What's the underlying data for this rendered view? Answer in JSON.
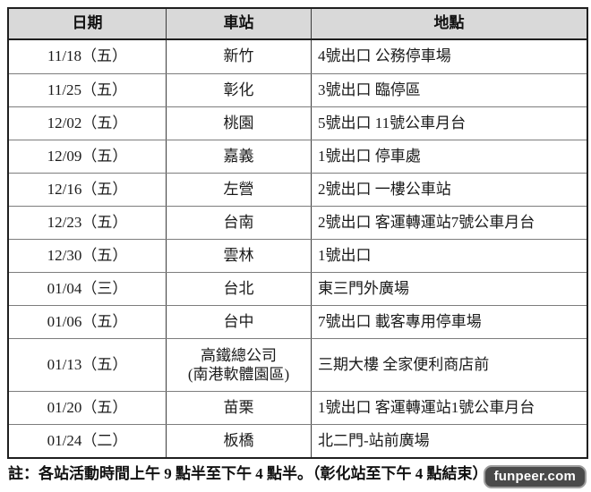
{
  "table": {
    "headers": [
      "日期",
      "車站",
      "地點"
    ],
    "rows": [
      {
        "date": "11/18（五）",
        "station": "新竹",
        "location": "4號出口 公務停車場"
      },
      {
        "date": "11/25（五）",
        "station": "彰化",
        "location": "3號出口 臨停區"
      },
      {
        "date": "12/02（五）",
        "station": "桃園",
        "location": "5號出口 11號公車月台"
      },
      {
        "date": "12/09（五）",
        "station": "嘉義",
        "location": "1號出口 停車處"
      },
      {
        "date": "12/16（五）",
        "station": "左營",
        "location": "2號出口 一樓公車站"
      },
      {
        "date": "12/23（五）",
        "station": "台南",
        "location": "2號出口 客運轉運站7號公車月台"
      },
      {
        "date": "12/30（五）",
        "station": "雲林",
        "location": "1號出口"
      },
      {
        "date": "01/04（三）",
        "station": "台北",
        "location": "東三門外廣場"
      },
      {
        "date": "01/06（五）",
        "station": "台中",
        "location": "7號出口 載客專用停車場"
      },
      {
        "date": "01/13（五）",
        "station": "高鐵總公司",
        "station_line2": "(南港軟體園區)",
        "location": "三期大樓 全家便利商店前"
      },
      {
        "date": "01/20（五）",
        "station": "苗栗",
        "location": "1號出口 客運轉運站1號公車月台"
      },
      {
        "date": "01/24（二）",
        "station": "板橋",
        "location": "北二門-站前廣場"
      }
    ]
  },
  "note": "註：各站活動時間上午 9 點半至下午 4 點半。（彰化站至下午 4 點結束）",
  "watermark": "funpeer.com",
  "colors": {
    "header_bg": "#d9d9d9",
    "outer_border": "#1f1f1f",
    "row_line": "#7d7d7d",
    "column_line": "#3c3c3c",
    "watermark_bg": "#4a4a4a"
  }
}
